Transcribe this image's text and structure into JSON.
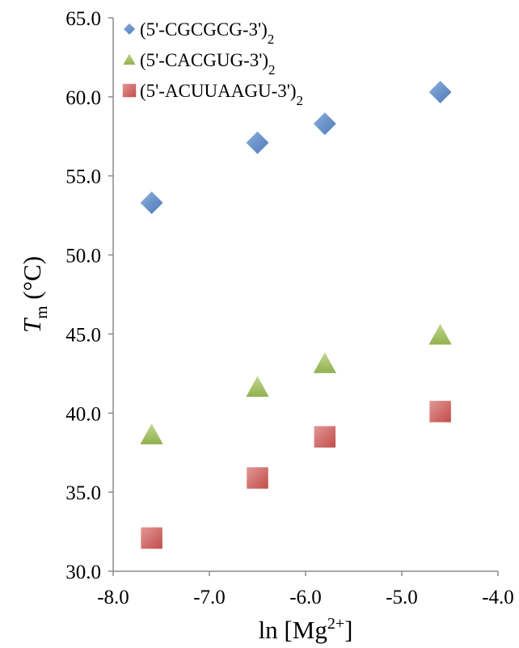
{
  "chart_data": {
    "type": "scatter",
    "xlim": [
      -8.0,
      -4.0
    ],
    "ylim": [
      30.0,
      65.0
    ],
    "x_ticks": [
      "-8.0",
      "-7.0",
      "-6.0",
      "-5.0",
      "-4.0"
    ],
    "y_ticks": [
      "30.0",
      "35.0",
      "40.0",
      "45.0",
      "50.0",
      "55.0",
      "60.0",
      "65.0"
    ],
    "grid": false,
    "legend_position": "top-left",
    "xlabel": {
      "prefix": "ln [Mg",
      "sup": "2+",
      "suffix": "]"
    },
    "ylabel": {
      "main": "T",
      "sub": "m",
      "rest": " (°C)"
    },
    "series": [
      {
        "name": {
          "text": "(5'-CGCGCG-3')",
          "sub": "2"
        },
        "marker": "diamond",
        "color": "#4f81bd",
        "x": [
          -7.6,
          -6.5,
          -5.8,
          -4.6
        ],
        "y": [
          53.3,
          57.1,
          58.3,
          60.3
        ]
      },
      {
        "name": {
          "text": "(5'-CACGUG-3')",
          "sub": "2"
        },
        "marker": "triangle",
        "color": "#9bbb59",
        "x": [
          -7.6,
          -6.5,
          -5.8,
          -4.6
        ],
        "y": [
          38.6,
          41.6,
          43.1,
          44.9
        ]
      },
      {
        "name": {
          "text": "(5'-ACUUAAGU-3')",
          "sub": "2"
        },
        "marker": "square",
        "color": "#c0504d",
        "x": [
          -7.6,
          -6.5,
          -5.8,
          -4.6
        ],
        "y": [
          32.1,
          35.9,
          38.5,
          40.1
        ]
      }
    ]
  }
}
